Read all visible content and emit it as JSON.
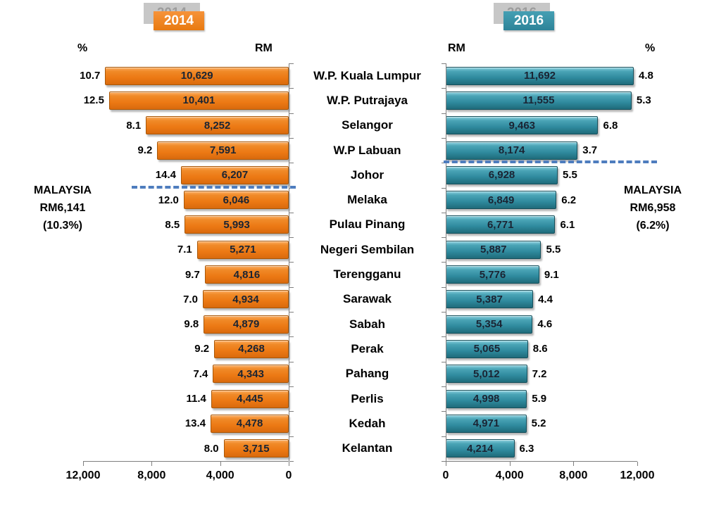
{
  "legend": {
    "left_year": "2014",
    "right_year": "2016"
  },
  "unit_headers": {
    "left_pct": "%",
    "left_rm": "RM",
    "right_rm": "RM",
    "right_pct": "%"
  },
  "colors": {
    "bar_2014": "#ED7D31",
    "bar_2016": "#31859C",
    "reference_line": "#4E7DBE",
    "legend_shadow": "#C7C7C7"
  },
  "chart_data": {
    "type": "bar",
    "orientation": "horizontal-butterfly",
    "title": "",
    "categories": [
      "W.P. Kuala Lumpur",
      "W.P. Putrajaya",
      "Selangor",
      "W.P Labuan",
      "Johor",
      "Melaka",
      "Pulau Pinang",
      "Negeri Sembilan",
      "Terengganu",
      "Sarawak",
      "Sabah",
      "Perak",
      "Pahang",
      "Perlis",
      "Kedah",
      "Kelantan"
    ],
    "xlim": [
      0,
      12000
    ],
    "x_ticks_left": [
      "12,000",
      "8,000",
      "4,000",
      "0"
    ],
    "x_ticks_right": [
      "0",
      "4,000",
      "8,000",
      "12,000"
    ],
    "series": [
      {
        "name": "2014",
        "side": "left",
        "unit": "RM",
        "color": "#ED7D31",
        "values": [
          10629,
          10401,
          8252,
          7591,
          6207,
          6046,
          5993,
          5271,
          4816,
          4934,
          4879,
          4268,
          4343,
          4445,
          4478,
          3715
        ],
        "value_labels": [
          "10,629",
          "10,401",
          "8,252",
          "7,591",
          "6,207",
          "6,046",
          "5,993",
          "5,271",
          "4,816",
          "4,934",
          "4,879",
          "4,268",
          "4,343",
          "4,445",
          "4,478",
          "3,715"
        ],
        "growth_pct_labels": [
          "10.7",
          "12.5",
          "8.1",
          "9.2",
          "14.4",
          "12.0",
          "8.5",
          "7.1",
          "9.7",
          "7.0",
          "9.8",
          "9.2",
          "7.4",
          "11.4",
          "13.4",
          "8.0"
        ]
      },
      {
        "name": "2016",
        "side": "right",
        "unit": "RM",
        "color": "#31859C",
        "values": [
          11692,
          11555,
          9463,
          8174,
          6928,
          6849,
          6771,
          5887,
          5776,
          5387,
          5354,
          5065,
          5012,
          4998,
          4971,
          4214
        ],
        "value_labels": [
          "11,692",
          "11,555",
          "9,463",
          "8,174",
          "6,928",
          "6,849",
          "6,771",
          "5,887",
          "5,776",
          "5,387",
          "5,354",
          "5,065",
          "5,012",
          "4,998",
          "4,971",
          "4,214"
        ],
        "growth_pct_labels": [
          "4.8",
          "5.3",
          "6.8",
          "3.7",
          "5.5",
          "6.2",
          "6.1",
          "5.5",
          "9.1",
          "4.4",
          "4.6",
          "8.6",
          "7.2",
          "5.9",
          "5.2",
          "6.3"
        ]
      }
    ],
    "reference_lines": [
      {
        "series": "2014",
        "side": "left",
        "value": 6141,
        "after_index": 4,
        "label_lines": [
          "MALAYSIA",
          "RM6,141",
          "(10.3%)"
        ]
      },
      {
        "series": "2016",
        "side": "right",
        "value": 6958,
        "after_index": 3,
        "label_lines": [
          "MALAYSIA",
          "RM6,958",
          "(6.2%)"
        ]
      }
    ]
  }
}
